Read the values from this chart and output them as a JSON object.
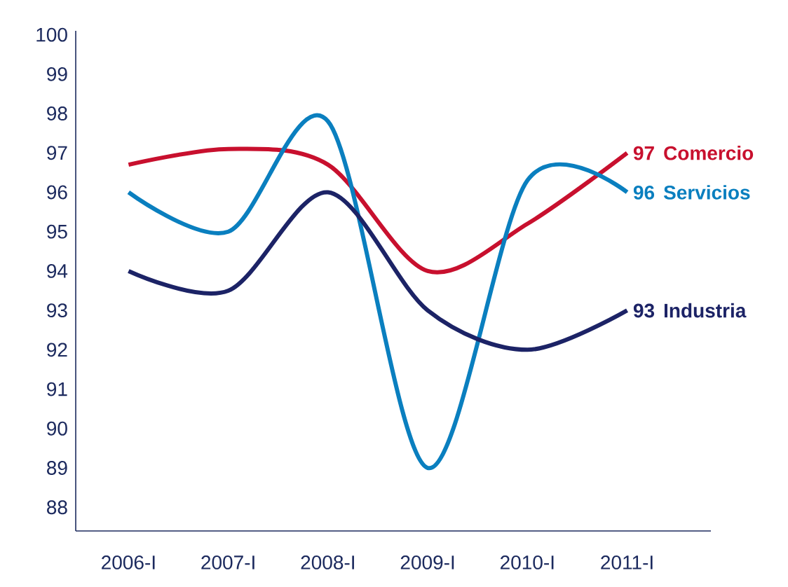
{
  "chart_data": {
    "type": "line",
    "categories": [
      "2006-I",
      "2007-I",
      "2008-I",
      "2009-I",
      "2010-I",
      "2011-I"
    ],
    "ylim": [
      87.4,
      100.1
    ],
    "yticks": [
      88,
      89,
      90,
      91,
      92,
      93,
      94,
      95,
      96,
      97,
      98,
      99,
      100
    ],
    "grid": false,
    "legend": false,
    "marker": "none",
    "line_style": "solid",
    "series": [
      {
        "name": "Comercio",
        "color": "#c8102e",
        "values": [
          96.7,
          97.1,
          96.7,
          94.0,
          95.2,
          97
        ],
        "value_labels": [
          null,
          null,
          null,
          null,
          null,
          "97"
        ]
      },
      {
        "name": "Servicios",
        "color": "#0a7fbf",
        "values": [
          96,
          95,
          97.8,
          89,
          96.3,
          96
        ],
        "value_labels": [
          null,
          null,
          null,
          null,
          null,
          "96"
        ]
      },
      {
        "name": "Industria",
        "color": "#1c2366",
        "values": [
          94,
          93.5,
          96,
          93,
          92,
          93
        ],
        "value_labels": [
          null,
          null,
          null,
          null,
          null,
          "93"
        ]
      }
    ]
  }
}
